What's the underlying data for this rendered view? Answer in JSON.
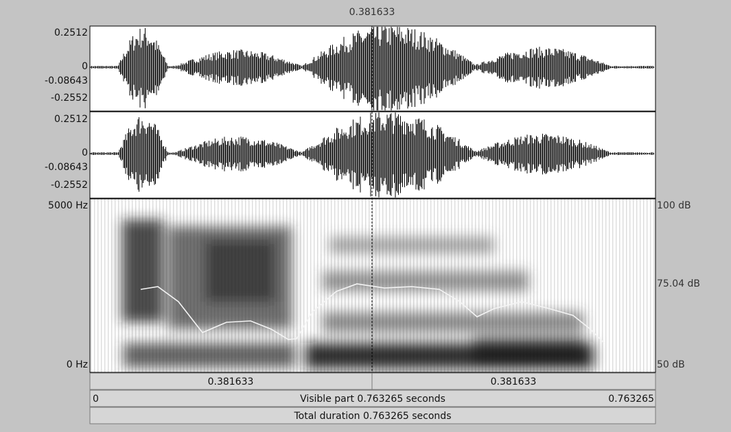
{
  "cursor_time": "0.381633",
  "channels": [
    {
      "max": "0.2512",
      "zero": "0",
      "value": "-0.08643",
      "min": "-0.2552"
    },
    {
      "max": "0.2512",
      "zero": "0",
      "value": "-0.08643",
      "min": "-0.2552"
    }
  ],
  "spectrogram": {
    "top": "5000 Hz",
    "bottom": "0 Hz"
  },
  "intensity": {
    "top": "100 dB",
    "mid": "75.04 dB",
    "bottom": "50 dB"
  },
  "selection_bar": [
    "0.381633",
    "0.381633"
  ],
  "visible_bar": {
    "start": "0",
    "label": "Visible part 0.763265 seconds",
    "end": "0.763265"
  },
  "total_bar": "Total duration 0.763265 seconds"
}
